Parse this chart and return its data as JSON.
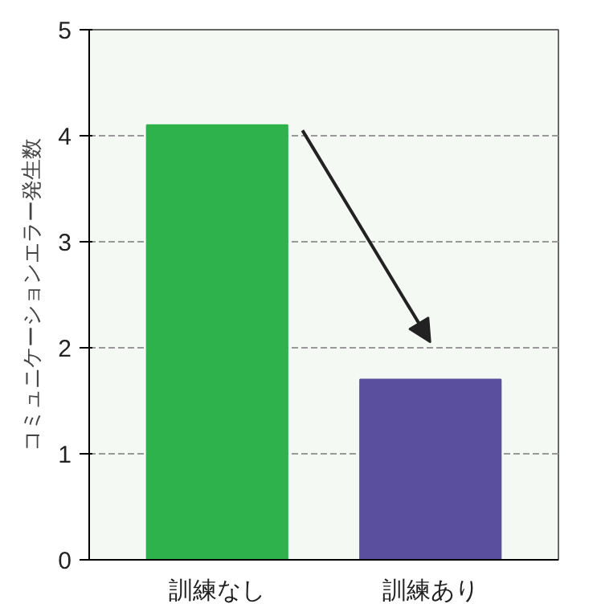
{
  "chart_data": {
    "type": "bar",
    "ylabel": "コミュニケーションエラー発生数",
    "categories": [
      "訓練なし",
      "訓練あり"
    ],
    "values": [
      4.1,
      1.7
    ],
    "colors": [
      "#2eb34c",
      "#5a4e9e"
    ],
    "ylim": [
      0,
      5
    ],
    "yticks": [
      0,
      1,
      2,
      3,
      4,
      5
    ],
    "grid": "y"
  }
}
